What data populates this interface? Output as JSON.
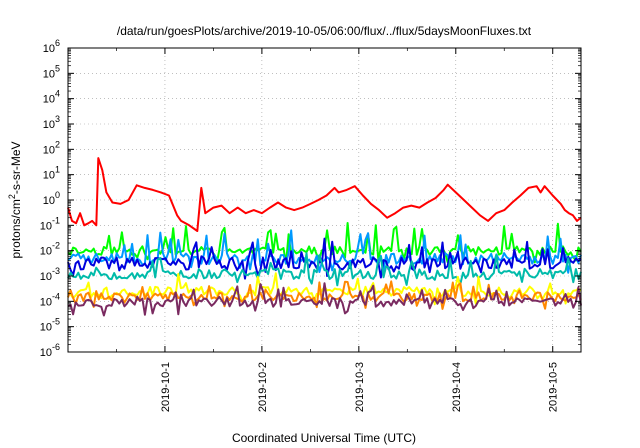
{
  "chart_data": {
    "type": "line",
    "title": "/data/run/goesPlots/archive/2019-10-05/06:00/flux/../flux/5daysMoonFluxes.txt",
    "xlabel": "Coordinated Universal Time (UTC)",
    "ylabel": {
      "pre": "protons/cm",
      "sup": "2",
      "post": "-s-sr-MeV"
    },
    "y_scale": "log",
    "ylim": [
      1e-06,
      1000000.0
    ],
    "y_ticks": [
      {
        "base": "10",
        "exp": "-6",
        "value": 1e-06
      },
      {
        "base": "10",
        "exp": "-5",
        "value": 1e-05
      },
      {
        "base": "10",
        "exp": "-4",
        "value": 0.0001
      },
      {
        "base": "10",
        "exp": "-3",
        "value": 0.001
      },
      {
        "base": "10",
        "exp": "-2",
        "value": 0.01
      },
      {
        "base": "10",
        "exp": "-1",
        "value": 0.1
      },
      {
        "base": "10",
        "exp": "0",
        "value": 1
      },
      {
        "base": "10",
        "exp": "1",
        "value": 10.0
      },
      {
        "base": "10",
        "exp": "2",
        "value": 100.0
      },
      {
        "base": "10",
        "exp": "3",
        "value": 1000.0
      },
      {
        "base": "10",
        "exp": "4",
        "value": 10000.0
      },
      {
        "base": "10",
        "exp": "5",
        "value": 100000.0
      },
      {
        "base": "10",
        "exp": "6",
        "value": 1000000.0
      }
    ],
    "xlim": [
      "2019-09-30T00:00",
      "2019-10-05T07:00"
    ],
    "x_ticks": [
      {
        "label": "2019-10-1",
        "value": "2019-10-01T00:00"
      },
      {
        "label": "2019-10-2",
        "value": "2019-10-02T00:00"
      },
      {
        "label": "2019-10-3",
        "value": "2019-10-03T00:00"
      },
      {
        "label": "2019-10-4",
        "value": "2019-10-04T00:00"
      },
      {
        "label": "2019-10-5",
        "value": "2019-10-05T00:00"
      }
    ],
    "grid": true,
    "series": [
      {
        "color": "#ff0000",
        "width": 2,
        "points": [
          [
            "2019-09-30T00:00",
            0.5
          ],
          [
            "2019-09-30T01:00",
            0.15
          ],
          [
            "2019-09-30T02:00",
            0.12
          ],
          [
            "2019-09-30T03:00",
            0.3
          ],
          [
            "2019-09-30T04:00",
            0.1
          ],
          [
            "2019-09-30T05:00",
            0.12
          ],
          [
            "2019-09-30T06:00",
            0.15
          ],
          [
            "2019-09-30T07:00",
            0.1
          ],
          [
            "2019-09-30T07:30",
            45
          ],
          [
            "2019-09-30T08:30",
            15
          ],
          [
            "2019-09-30T09:30",
            2
          ],
          [
            "2019-09-30T11:00",
            0.8
          ],
          [
            "2019-09-30T13:00",
            0.7
          ],
          [
            "2019-09-30T15:00",
            1.0
          ],
          [
            "2019-09-30T17:00",
            3.8
          ],
          [
            "2019-09-30T19:00",
            3.0
          ],
          [
            "2019-09-30T21:00",
            2.5
          ],
          [
            "2019-09-30T23:00",
            2.0
          ],
          [
            "2019-10-01T01:00",
            1.5
          ],
          [
            "2019-10-01T03:00",
            0.25
          ],
          [
            "2019-10-01T04:00",
            0.15
          ],
          [
            "2019-10-01T06:00",
            0.1
          ],
          [
            "2019-10-01T08:00",
            0.06
          ],
          [
            "2019-10-01T09:00",
            3.0
          ],
          [
            "2019-10-01T10:00",
            0.3
          ],
          [
            "2019-10-01T12:00",
            0.5
          ],
          [
            "2019-10-01T14:00",
            0.6
          ],
          [
            "2019-10-01T16:00",
            0.3
          ],
          [
            "2019-10-01T18:00",
            0.5
          ],
          [
            "2019-10-01T20:00",
            0.3
          ],
          [
            "2019-10-01T22:00",
            0.4
          ],
          [
            "2019-10-02T00:00",
            0.3
          ],
          [
            "2019-10-02T02:00",
            0.5
          ],
          [
            "2019-10-02T04:00",
            0.8
          ],
          [
            "2019-10-02T06:00",
            0.5
          ],
          [
            "2019-10-02T08:00",
            0.4
          ],
          [
            "2019-10-02T10:00",
            0.5
          ],
          [
            "2019-10-02T12:00",
            0.7
          ],
          [
            "2019-10-02T14:00",
            1.0
          ],
          [
            "2019-10-02T16:00",
            1.5
          ],
          [
            "2019-10-02T18:00",
            3.0
          ],
          [
            "2019-10-02T19:00",
            2.0
          ],
          [
            "2019-10-02T21:00",
            2.5
          ],
          [
            "2019-10-02T23:00",
            3.5
          ],
          [
            "2019-10-03T01:00",
            1.5
          ],
          [
            "2019-10-03T03:00",
            0.7
          ],
          [
            "2019-10-03T05:00",
            0.4
          ],
          [
            "2019-10-03T07:00",
            0.2
          ],
          [
            "2019-10-03T09:00",
            0.3
          ],
          [
            "2019-10-03T11:00",
            0.5
          ],
          [
            "2019-10-03T13:00",
            0.6
          ],
          [
            "2019-10-03T15:00",
            0.5
          ],
          [
            "2019-10-03T17:00",
            0.8
          ],
          [
            "2019-10-03T19:00",
            1.2
          ],
          [
            "2019-10-03T21:00",
            2.5
          ],
          [
            "2019-10-03T22:00",
            4.0
          ],
          [
            "2019-10-04T00:00",
            2.0
          ],
          [
            "2019-10-04T02:00",
            1.0
          ],
          [
            "2019-10-04T04:00",
            0.5
          ],
          [
            "2019-10-04T06:00",
            0.25
          ],
          [
            "2019-10-04T08:00",
            0.15
          ],
          [
            "2019-10-04T10:00",
            0.3
          ],
          [
            "2019-10-04T12:00",
            0.4
          ],
          [
            "2019-10-04T14:00",
            0.8
          ],
          [
            "2019-10-04T16:00",
            1.5
          ],
          [
            "2019-10-04T18:00",
            3.0
          ],
          [
            "2019-10-04T20:00",
            3.5
          ],
          [
            "2019-10-04T21:00",
            2.0
          ],
          [
            "2019-10-04T22:00",
            3.5
          ],
          [
            "2019-10-05T00:00",
            1.5
          ],
          [
            "2019-10-05T02:00",
            0.7
          ],
          [
            "2019-10-05T03:00",
            0.4
          ],
          [
            "2019-10-05T04:00",
            0.3
          ],
          [
            "2019-10-05T05:00",
            0.25
          ],
          [
            "2019-10-05T06:00",
            0.15
          ],
          [
            "2019-10-05T07:00",
            0.2
          ]
        ]
      },
      {
        "color": "#00ff00",
        "width": 2,
        "base": 0.01,
        "spread": 1.5,
        "spike": 9,
        "seed": 11
      },
      {
        "color": "#0099ff",
        "width": 2,
        "base": 0.005,
        "spread": 1.7,
        "spike": 9,
        "seed": 23
      },
      {
        "color": "#0000dd",
        "width": 2,
        "base": 0.003,
        "spread": 1.8,
        "spike": 6,
        "seed": 37
      },
      {
        "color": "#00bbaa",
        "width": 2,
        "base": 0.0012,
        "spread": 1.6,
        "spike": 5,
        "seed": 53
      },
      {
        "color": "#ffff00",
        "width": 2,
        "base": 0.00025,
        "spread": 1.5,
        "spike": 4,
        "seed": 67
      },
      {
        "color": "#ff8800",
        "width": 2,
        "base": 0.00015,
        "spread": 1.5,
        "spike": 4,
        "seed": 79
      },
      {
        "color": "#7a2a60",
        "width": 2,
        "base": 9e-05,
        "spread": 1.5,
        "spike": 4,
        "seed": 97
      }
    ]
  }
}
